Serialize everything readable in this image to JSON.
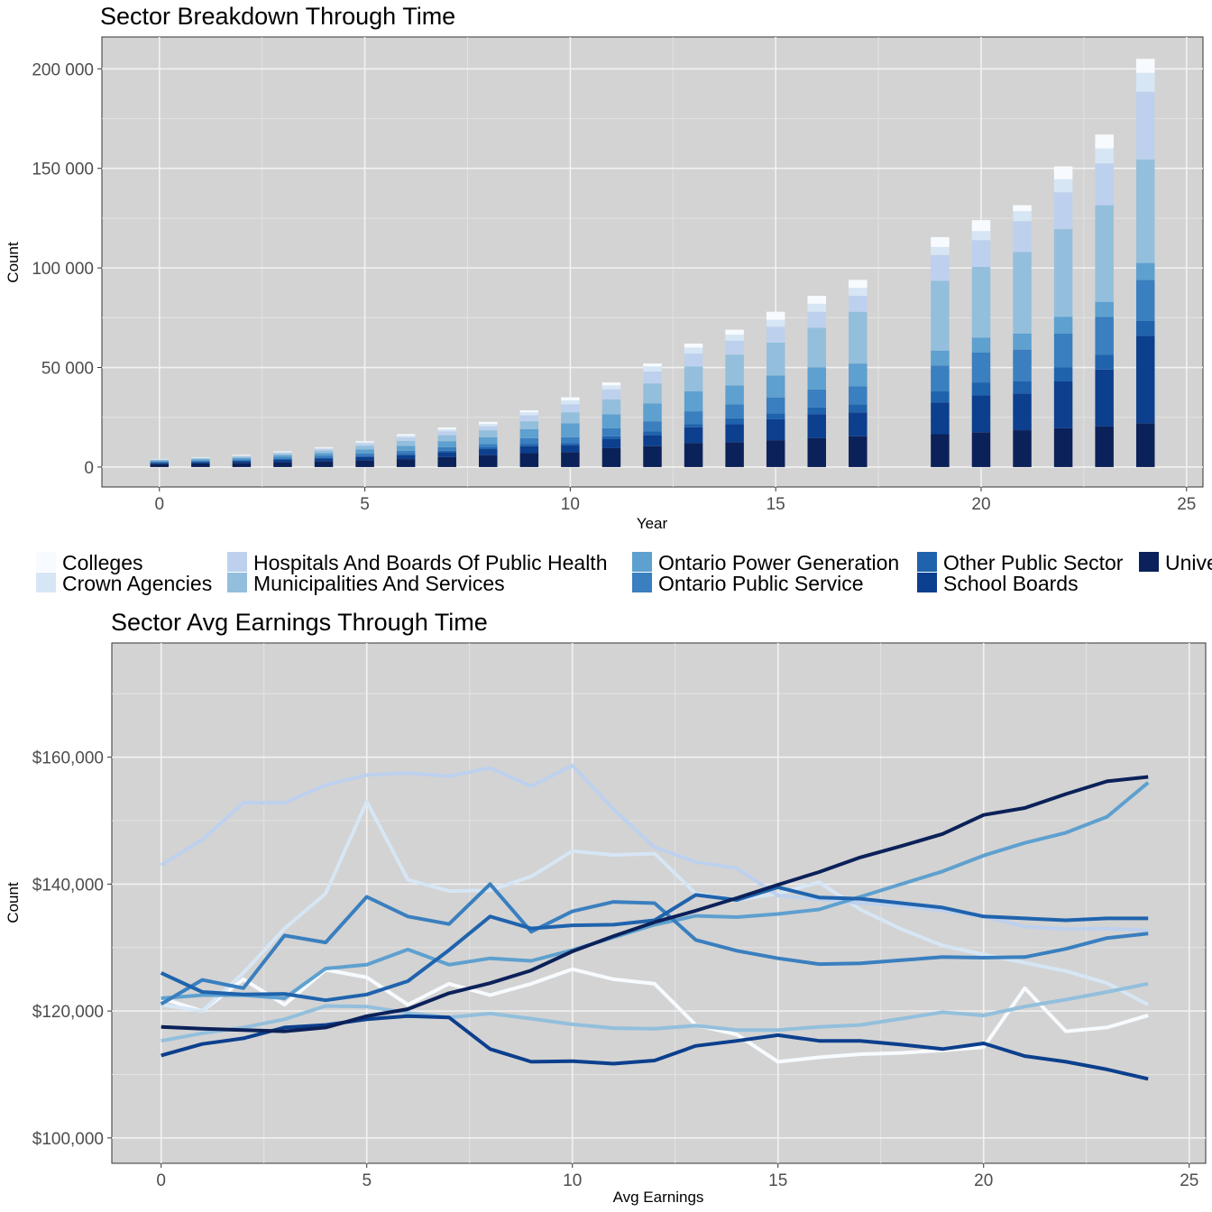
{
  "legend": {
    "items": [
      {
        "label": "Colleges",
        "color": "#f7fbff"
      },
      {
        "label": "Crown Agencies",
        "color": "#d6e6f5"
      },
      {
        "label": "Hospitals And Boards Of Public Health",
        "color": "#bdd1ee"
      },
      {
        "label": "Municipalities And Services",
        "color": "#93bfdc"
      },
      {
        "label": "Ontario Power Generation",
        "color": "#5ea0cf"
      },
      {
        "label": "Ontario Public Service",
        "color": "#3a7fbf"
      },
      {
        "label": "Other Public Sector",
        "color": "#1f63ad"
      },
      {
        "label": "School Boards",
        "color": "#0c3f8d"
      },
      {
        "label": "Universities",
        "color": "#0b2159"
      }
    ]
  },
  "chart_data": [
    {
      "type": "bar",
      "stacked": true,
      "title": "Sector Breakdown Through Time",
      "xlabel": "Year",
      "ylabel": "Count",
      "xlim": [
        -1.4,
        25.4
      ],
      "ylim": [
        -10000,
        216000
      ],
      "x_ticks": [
        0,
        5,
        10,
        15,
        20,
        25
      ],
      "x_tick_labels": [
        "0",
        "5",
        "10",
        "15",
        "20",
        "25"
      ],
      "y_ticks": [
        0,
        50000,
        100000,
        150000,
        200000
      ],
      "y_tick_labels": [
        "0",
        "50 000",
        "100 000",
        "150 000",
        "200 000"
      ],
      "grid": true,
      "x": [
        0,
        1,
        2,
        3,
        4,
        5,
        6,
        7,
        8,
        9,
        10,
        11,
        12,
        13,
        14,
        15,
        16,
        17,
        19,
        20,
        21,
        22,
        23,
        24
      ],
      "series": [
        {
          "name": "Universities",
          "values": [
            1500,
            1800,
            2100,
            2500,
            3000,
            3500,
            4000,
            5000,
            6000,
            7000,
            7500,
            9500,
            10500,
            12000,
            12500,
            13500,
            14500,
            15500,
            16500,
            17500,
            18500,
            19500,
            20500,
            22000
          ]
        },
        {
          "name": "School Boards",
          "values": [
            600,
            700,
            800,
            1100,
            1300,
            1600,
            2000,
            2500,
            3000,
            3500,
            3500,
            4500,
            5500,
            8000,
            9000,
            10500,
            12000,
            12000,
            16000,
            18500,
            18500,
            23500,
            28500,
            44000
          ]
        },
        {
          "name": "Other Public Sector",
          "values": [
            300,
            300,
            400,
            500,
            500,
            600,
            700,
            700,
            900,
            1000,
            1000,
            1500,
            2000,
            1500,
            3000,
            3000,
            3500,
            4000,
            5500,
            6500,
            6000,
            7000,
            7500,
            7500
          ]
        },
        {
          "name": "Ontario Public Service",
          "values": [
            400,
            500,
            600,
            800,
            1000,
            1200,
            1500,
            1800,
            1600,
            3000,
            3000,
            4000,
            5000,
            6500,
            7000,
            8000,
            9000,
            9000,
            13000,
            15000,
            16000,
            17000,
            19000,
            20500
          ]
        },
        {
          "name": "Ontario Power Generation",
          "values": [
            500,
            600,
            700,
            1000,
            1200,
            2000,
            2500,
            3000,
            3500,
            4500,
            7000,
            7000,
            9000,
            10000,
            9500,
            11000,
            11000,
            11500,
            7500,
            7500,
            8000,
            8500,
            7500,
            8500
          ]
        },
        {
          "name": "Municipalities And Services",
          "values": [
            300,
            400,
            600,
            800,
            1300,
            1800,
            2500,
            3000,
            3500,
            4000,
            5500,
            7500,
            10000,
            12500,
            15500,
            16500,
            20000,
            26000,
            35000,
            35500,
            41000,
            44000,
            48500,
            52000
          ]
        },
        {
          "name": "Hospitals And Boards Of Public Health",
          "values": [
            200,
            300,
            300,
            500,
            800,
            1200,
            1800,
            2000,
            2000,
            3000,
            4000,
            5000,
            6000,
            6500,
            7000,
            8000,
            8000,
            8000,
            13000,
            13500,
            15500,
            18500,
            21000,
            34000
          ]
        },
        {
          "name": "Crown Agencies",
          "values": [
            150,
            200,
            300,
            400,
            500,
            600,
            800,
            1000,
            1200,
            1500,
            2000,
            2000,
            2500,
            3000,
            3000,
            3500,
            4000,
            4000,
            4000,
            4500,
            5000,
            6500,
            7500,
            9500
          ]
        },
        {
          "name": "Colleges",
          "values": [
            150,
            200,
            300,
            300,
            400,
            500,
            700,
            800,
            1000,
            1000,
            1500,
            1500,
            1500,
            2000,
            2500,
            4000,
            4000,
            4000,
            5000,
            5500,
            3000,
            6500,
            7000,
            7000
          ]
        }
      ]
    },
    {
      "type": "line",
      "title": "Sector Avg Earnings Through Time",
      "xlabel": "Avg Earnings",
      "ylabel": "Count",
      "xlim": [
        -1.2,
        25.4
      ],
      "ylim": [
        96000,
        178000
      ],
      "x_ticks": [
        0,
        5,
        10,
        15,
        20,
        25
      ],
      "x_tick_labels": [
        "0",
        "5",
        "10",
        "15",
        "20",
        "25"
      ],
      "y_ticks": [
        100000,
        120000,
        140000,
        160000
      ],
      "y_tick_labels": [
        "$100,000",
        "$120,000",
        "$140,000",
        "$160,000"
      ],
      "grid": true,
      "x": [
        0,
        1,
        2,
        3,
        4,
        5,
        6,
        7,
        8,
        9,
        10,
        11,
        12,
        13,
        14,
        15,
        16,
        17,
        18,
        19,
        20,
        21,
        22,
        23,
        24
      ],
      "series": [
        {
          "name": "Colleges",
          "values": [
            122000,
            120000,
            125000,
            121000,
            126500,
            125300,
            121000,
            124300,
            122500,
            124300,
            126600,
            125000,
            124300,
            117800,
            116300,
            112000,
            112700,
            113200,
            113400,
            113800,
            114300,
            123600,
            116800,
            117400,
            119300
          ]
        },
        {
          "name": "Crown Agencies",
          "values": [
            121000,
            120000,
            126000,
            133000,
            138500,
            153000,
            140700,
            138900,
            139000,
            141200,
            145200,
            144600,
            144800,
            138500,
            137500,
            138500,
            140300,
            136000,
            132900,
            130300,
            128900,
            127600,
            126300,
            124400,
            121000
          ]
        },
        {
          "name": "Hospitals And Boards Of Public Health",
          "values": [
            143000,
            147000,
            152800,
            152800,
            155600,
            157200,
            157500,
            157000,
            158300,
            155400,
            158700,
            151800,
            145800,
            143500,
            142500,
            138200,
            137600,
            137000,
            136600,
            135800,
            134900,
            133300,
            132900,
            133000,
            132700
          ]
        },
        {
          "name": "Municipalities And Services",
          "values": [
            115300,
            116500,
            117400,
            118700,
            120800,
            120700,
            119700,
            119000,
            119600,
            118800,
            117900,
            117300,
            117200,
            117700,
            117000,
            117000,
            117500,
            117800,
            118800,
            119800,
            119300,
            120700,
            121800,
            123000,
            124300
          ]
        },
        {
          "name": "Ontario Power Generation",
          "values": [
            122000,
            122500,
            122500,
            122000,
            126700,
            127300,
            129700,
            127300,
            128300,
            127900,
            129600,
            131600,
            133600,
            135000,
            134800,
            135300,
            136000,
            138000,
            140000,
            142000,
            144500,
            146500,
            148100,
            150600,
            156000
          ]
        },
        {
          "name": "Ontario Public Service",
          "values": [
            121100,
            124900,
            123600,
            131900,
            130800,
            138000,
            134900,
            133700,
            140000,
            132500,
            135700,
            137200,
            137000,
            131200,
            129500,
            128300,
            127400,
            127500,
            128000,
            128500,
            128400,
            128500,
            129800,
            131500,
            132200
          ]
        },
        {
          "name": "Other Public Sector",
          "values": [
            126000,
            123000,
            122600,
            122700,
            121700,
            122600,
            124700,
            129600,
            134900,
            133000,
            133500,
            133600,
            134300,
            138300,
            137500,
            139500,
            137900,
            137700,
            137000,
            136300,
            134900,
            134600,
            134300,
            134600,
            134600
          ]
        },
        {
          "name": "School Boards",
          "values": [
            113000,
            114800,
            115700,
            117400,
            117800,
            118700,
            119200,
            119000,
            114000,
            112000,
            112100,
            111700,
            112200,
            114500,
            115300,
            116200,
            115300,
            115300,
            114700,
            114000,
            114900,
            112900,
            112000,
            110800,
            109300
          ]
        },
        {
          "name": "Universities",
          "values": [
            117500,
            117200,
            117000,
            116800,
            117400,
            119200,
            120300,
            122800,
            124400,
            126400,
            129400,
            131800,
            134000,
            135800,
            137800,
            139900,
            141900,
            144200,
            146000,
            147900,
            150900,
            152000,
            154200,
            156200,
            156900
          ]
        }
      ]
    }
  ]
}
